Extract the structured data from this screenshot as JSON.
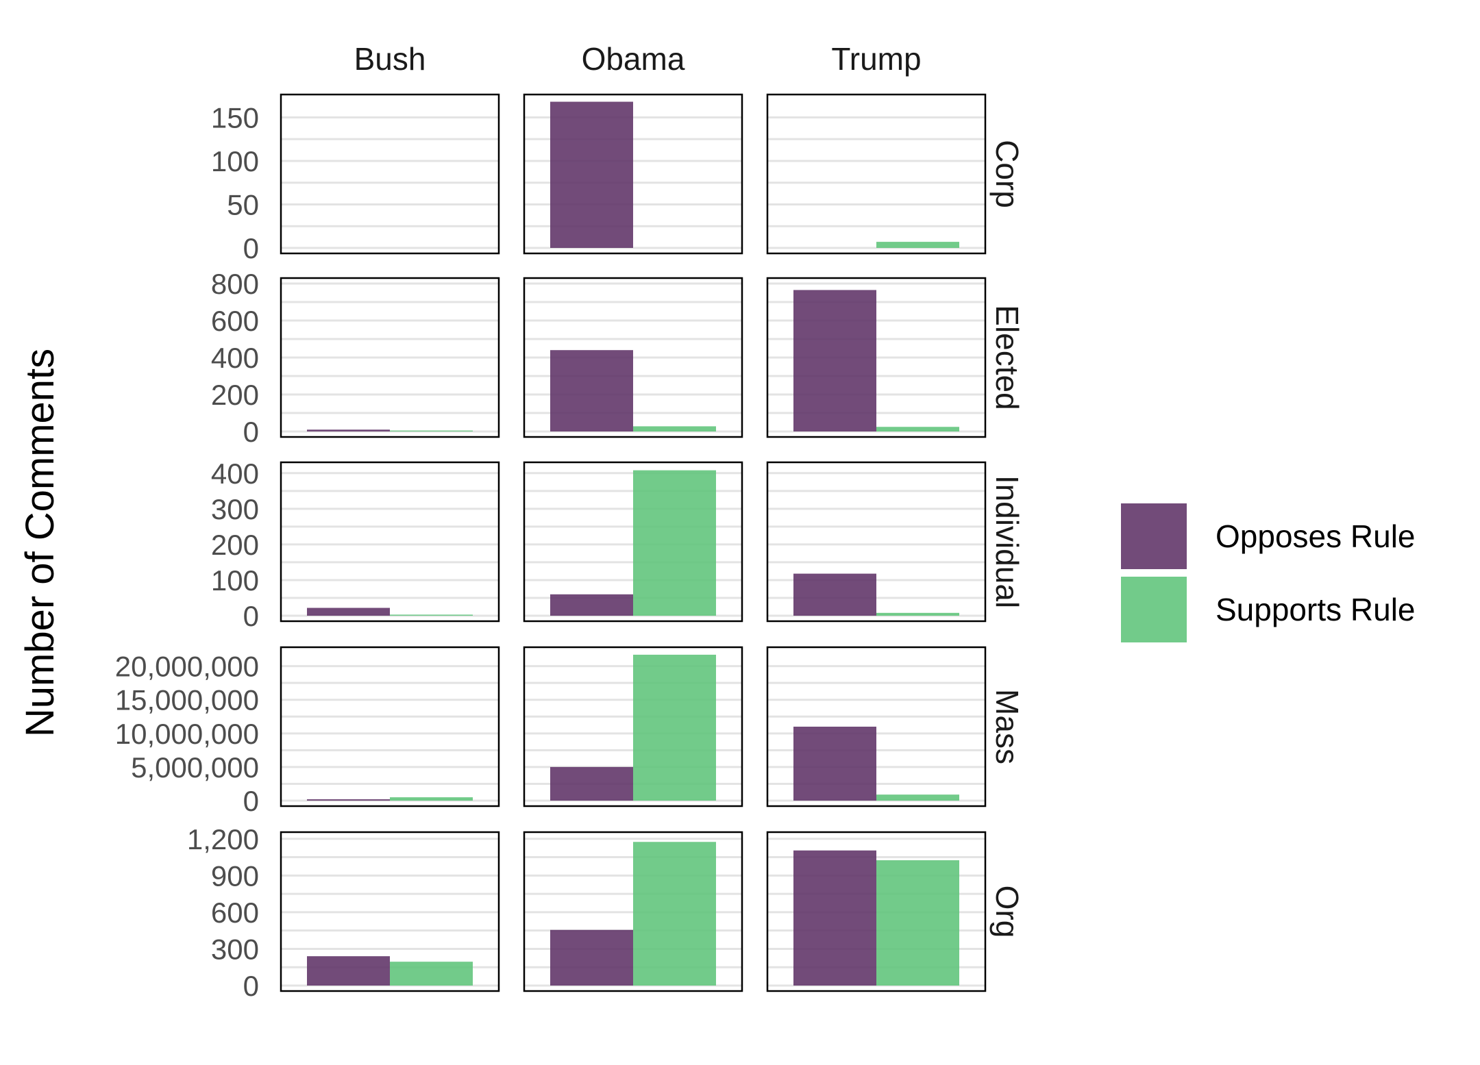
{
  "chart_data": {
    "type": "bar",
    "ylabel": "Number of Comments",
    "columns": [
      "Bush",
      "Obama",
      "Trump"
    ],
    "rows": [
      "Corp",
      "Elected",
      "Individual",
      "Mass",
      "Org"
    ],
    "legend": {
      "placement": "right",
      "items": [
        {
          "name": "Opposes Rule",
          "color": "#5e3266"
        },
        {
          "name": "Supports Rule",
          "color": "#5ec47a"
        }
      ]
    },
    "grid": true,
    "panels": [
      {
        "row": "Corp",
        "ylim": [
          0,
          170
        ],
        "ticks": [
          "0",
          "50",
          "100",
          "150"
        ],
        "tick_values": [
          0,
          50,
          100,
          150
        ],
        "values": {
          "Bush": [
            0,
            0
          ],
          "Obama": [
            168,
            0
          ],
          "Trump": [
            0,
            7
          ]
        }
      },
      {
        "row": "Elected",
        "ylim": [
          0,
          800
        ],
        "ticks": [
          "0",
          "200",
          "400",
          "600",
          "800"
        ],
        "tick_values": [
          0,
          200,
          400,
          600,
          800
        ],
        "values": {
          "Bush": [
            10,
            5
          ],
          "Obama": [
            440,
            28
          ],
          "Trump": [
            765,
            25
          ]
        }
      },
      {
        "row": "Individual",
        "ylim": [
          0,
          415
        ],
        "ticks": [
          "0",
          "100",
          "200",
          "300",
          "400"
        ],
        "tick_values": [
          0,
          100,
          200,
          300,
          400
        ],
        "values": {
          "Bush": [
            22,
            3
          ],
          "Obama": [
            60,
            408
          ],
          "Trump": [
            118,
            8
          ]
        }
      },
      {
        "row": "Mass",
        "ylim": [
          0,
          22000000
        ],
        "ticks": [
          "0",
          "5,000,000",
          "10,000,000",
          "15,000,000",
          "20,000,000"
        ],
        "tick_values": [
          0,
          5000000,
          10000000,
          15000000,
          20000000
        ],
        "values": {
          "Bush": [
            200000,
            500000
          ],
          "Obama": [
            5000000,
            21700000
          ],
          "Trump": [
            11000000,
            900000
          ]
        }
      },
      {
        "row": "Org",
        "ylim": [
          0,
          1210
        ],
        "ticks": [
          "0",
          "300",
          "600",
          "900",
          "1,200"
        ],
        "tick_values": [
          0,
          300,
          600,
          900,
          1200
        ],
        "values": {
          "Bush": [
            240,
            195
          ],
          "Obama": [
            455,
            1175
          ],
          "Trump": [
            1105,
            1025
          ]
        }
      }
    ]
  }
}
